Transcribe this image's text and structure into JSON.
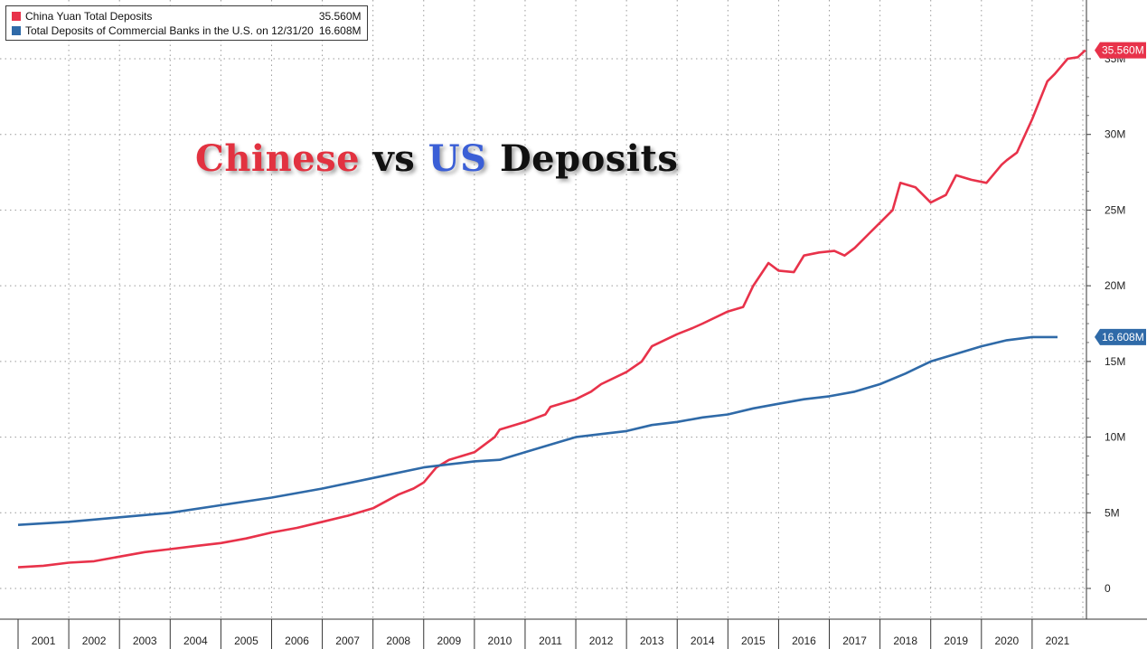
{
  "colors": {
    "china": "#e8324a",
    "us": "#2f6aa8",
    "grid": "#9a9a9a",
    "title_chinese": "#e23240",
    "title_us": "#3b5fd6",
    "title_rest": "#111111"
  },
  "title": {
    "part1": "Chinese",
    "part2": " vs ",
    "part3": "US",
    "part4": " Deposits"
  },
  "legend": [
    {
      "name": "China Yuan Total Deposits",
      "last": "35.560M"
    },
    {
      "name": "Total Deposits of Commercial Banks in the U.S. on 12/31/20",
      "last": "16.608M"
    }
  ],
  "chart_data": {
    "type": "line",
    "title": "Chinese vs US Deposits",
    "xlabel": "",
    "ylabel": "",
    "ylim": [
      -0.2,
      38.5
    ],
    "xlim": [
      2000.5,
      2021.6
    ],
    "grid": true,
    "legend_position": "top-left",
    "y_ticks": [
      0,
      5,
      10,
      15,
      20,
      25,
      30,
      35
    ],
    "y_tick_labels": [
      "0",
      "5M",
      "10M",
      "15M",
      "20M",
      "25M",
      "30M",
      "35M"
    ],
    "x_tick_labels": [
      "2001",
      "2002",
      "2003",
      "2004",
      "2005",
      "2006",
      "2007",
      "2008",
      "2009",
      "2010",
      "2011",
      "2012",
      "2013",
      "2014",
      "2015",
      "2016",
      "2017",
      "2018",
      "2019",
      "2020",
      "2021"
    ],
    "series": [
      {
        "name": "China Yuan Total Deposits",
        "last_label": "35.560M",
        "x": [
          2000.5,
          2001.0,
          2001.5,
          2002.0,
          2002.5,
          2003.0,
          2003.5,
          2004.0,
          2004.5,
          2005.0,
          2005.5,
          2006.0,
          2006.5,
          2007.0,
          2007.5,
          2008.0,
          2008.3,
          2008.5,
          2008.75,
          2009.0,
          2009.5,
          2009.9,
          2010.0,
          2010.5,
          2010.9,
          2011.0,
          2011.5,
          2011.8,
          2012.0,
          2012.5,
          2012.8,
          2013.0,
          2013.5,
          2013.8,
          2014.0,
          2014.5,
          2014.8,
          2015.0,
          2015.3,
          2015.5,
          2015.8,
          2016.0,
          2016.3,
          2016.6,
          2016.8,
          2017.0,
          2017.3,
          2017.6,
          2017.75,
          2017.9,
          2018.2,
          2018.5,
          2018.8,
          2019.0,
          2019.3,
          2019.6,
          2019.9,
          2020.0,
          2020.2,
          2020.5,
          2020.8,
          2020.95,
          2021.2,
          2021.4,
          2021.55
        ],
        "values": [
          1.4,
          1.5,
          1.7,
          1.8,
          2.1,
          2.4,
          2.6,
          2.8,
          3.0,
          3.3,
          3.7,
          4.0,
          4.4,
          4.8,
          5.3,
          6.2,
          6.6,
          7.0,
          8.0,
          8.5,
          9.0,
          10.0,
          10.5,
          11.0,
          11.5,
          12.0,
          12.5,
          13.0,
          13.5,
          14.3,
          15.0,
          16.0,
          16.8,
          17.2,
          17.5,
          18.3,
          18.6,
          20.0,
          21.5,
          21.0,
          20.9,
          22.0,
          22.2,
          22.3,
          22.0,
          22.5,
          23.5,
          24.5,
          25.0,
          26.8,
          26.5,
          25.5,
          26.0,
          27.3,
          27.0,
          26.8,
          28.0,
          28.3,
          28.8,
          31.0,
          33.5,
          34.0,
          35.0,
          35.1,
          35.56
        ]
      },
      {
        "name": "Total Deposits of Commercial Banks in the U.S. on 12/31/20",
        "last_label": "16.608M",
        "x": [
          2000.5,
          2001.5,
          2002.5,
          2003.5,
          2004.5,
          2005.5,
          2006.5,
          2007.5,
          2008.5,
          2009.0,
          2009.5,
          2010.0,
          2010.5,
          2011.0,
          2011.5,
          2012.0,
          2012.5,
          2013.0,
          2013.5,
          2014.0,
          2014.5,
          2015.0,
          2015.5,
          2016.0,
          2016.5,
          2017.0,
          2017.5,
          2018.0,
          2018.5,
          2019.0,
          2019.5,
          2020.0,
          2020.5,
          2021.0
        ],
        "values": [
          4.2,
          4.4,
          4.7,
          5.0,
          5.5,
          6.0,
          6.6,
          7.3,
          8.0,
          8.2,
          8.4,
          8.5,
          9.0,
          9.5,
          10.0,
          10.2,
          10.4,
          10.8,
          11.0,
          11.3,
          11.5,
          11.9,
          12.2,
          12.5,
          12.7,
          13.0,
          13.5,
          14.2,
          15.0,
          15.5,
          16.0,
          16.4,
          16.608,
          16.608
        ]
      }
    ]
  }
}
